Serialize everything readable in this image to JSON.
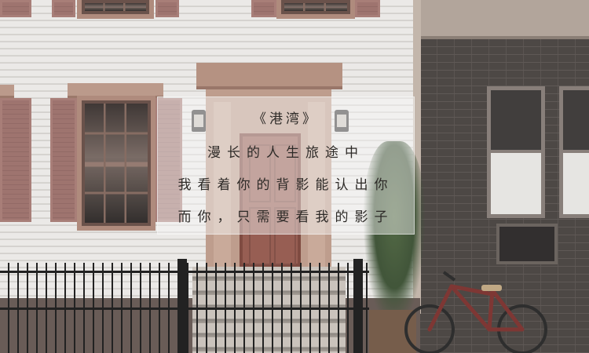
{
  "poem": {
    "title": "《港湾》",
    "lines": [
      "漫长的人生旅途中",
      "我看着你的背影能认出你",
      "而你，只需要看我的影子"
    ]
  },
  "colors": {
    "siding": "#f1efec",
    "brick": "#4b4541",
    "door": "#a4594b",
    "shutter": "#a9716a",
    "bike": "#8d2f2b"
  }
}
